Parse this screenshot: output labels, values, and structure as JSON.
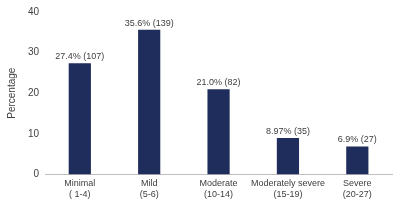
{
  "chart_data": {
    "type": "bar",
    "y_label": "Percentage",
    "categories": [
      "Minimal ( 1-4)",
      "Mild (5-6)",
      "Moderate (10-14)",
      "Moderately severe (15-19)",
      "Severe (20-27)"
    ],
    "values": [
      27.4,
      35.6,
      21.0,
      8.97,
      6.9
    ],
    "value_labels": [
      "27.4% (107)",
      "35.6% (139)",
      "21.0% (82)",
      "8.97% (35)",
      "6.9% (27)"
    ],
    "data_labels": true,
    "color": "#1f2d5c",
    "ylim": [
      0,
      40
    ],
    "yticks": [
      0,
      10,
      20,
      30,
      40
    ],
    "grid": false
  }
}
